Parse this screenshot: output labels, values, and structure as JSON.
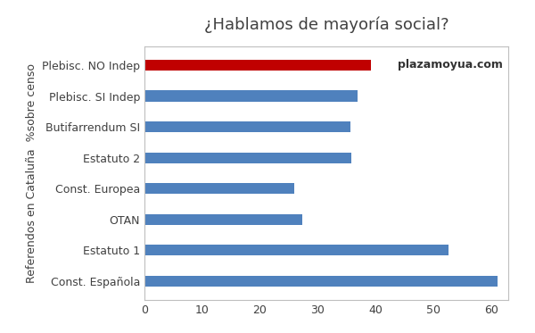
{
  "chart_data": {
    "type": "bar",
    "orientation": "horizontal",
    "title": "¿Hablamos de mayoría social?",
    "y_label": "Referendos en Cataluña  %sobre censo",
    "annotation": "plazamoyua.com",
    "categories": [
      "Const. Española",
      "Estatuto 1",
      "OTAN",
      "Const. Europea",
      "Estatuto 2",
      "Butifarrendum SI",
      "Plebisc. SI Indep",
      "Plebisc. NO Indep"
    ],
    "values": [
      61.2,
      52.6,
      27.3,
      26.0,
      35.8,
      35.7,
      36.9,
      39.2
    ],
    "colors": [
      "#4f81bd",
      "#4f81bd",
      "#4f81bd",
      "#4f81bd",
      "#4f81bd",
      "#4f81bd",
      "#4f81bd",
      "#c00000"
    ],
    "xlim": [
      0,
      63
    ],
    "xticks": [
      0,
      10,
      20,
      30,
      40,
      50,
      60
    ],
    "grid": false
  }
}
